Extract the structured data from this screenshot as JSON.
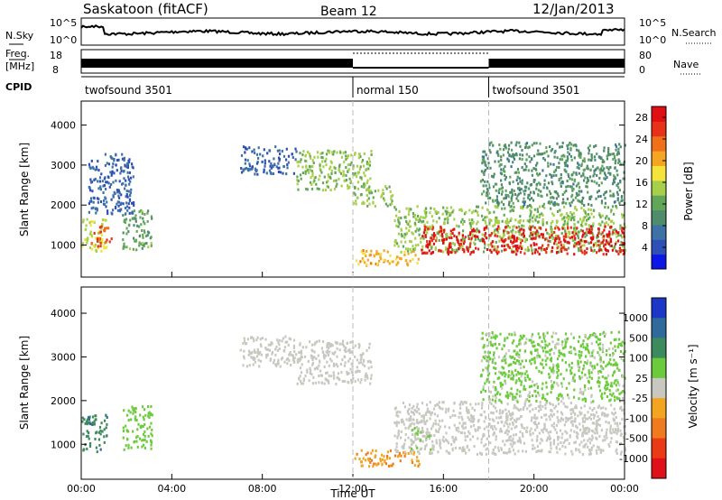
{
  "header": {
    "station": "Saskatoon (fitACF)",
    "beam": "Beam 12",
    "date": "12/Jan/2013"
  },
  "noise_panel": {
    "left_label": "N.Sky",
    "right_label": "N.Search",
    "left_ticks": [
      "10^5",
      "10^0"
    ],
    "right_ticks": [
      "10^5",
      "10^0"
    ]
  },
  "freq_panel": {
    "left_label_1": "Freq.",
    "left_label_2": "[MHz]",
    "left_ticks": [
      "18",
      "8"
    ],
    "right_label": "Nave",
    "right_ticks": [
      "80",
      "0"
    ]
  },
  "cpid_panel": {
    "label": "CPID",
    "segments": [
      {
        "start_hour": 0,
        "end_hour": 12,
        "name": "twofsound 3501"
      },
      {
        "start_hour": 12,
        "end_hour": 18,
        "name": "normal 150"
      },
      {
        "start_hour": 18,
        "end_hour": 24,
        "name": "twofsound 3501"
      }
    ]
  },
  "time_axis": {
    "label": "Time UT",
    "ticks": [
      "00:00",
      "04:00",
      "08:00",
      "12:00",
      "16:00",
      "20:00",
      "00:00"
    ],
    "hours": [
      0,
      4,
      8,
      12,
      16,
      20,
      24
    ]
  },
  "range_axis": {
    "label": "Slant Range [km]",
    "ticks": [
      "1000",
      "2000",
      "3000",
      "4000"
    ],
    "values": [
      1000,
      2000,
      3000,
      4000
    ],
    "ylim": [
      200,
      4600
    ]
  },
  "power_scale": {
    "title": "Power [dB]",
    "tick_labels": [
      "4",
      "8",
      "12",
      "16",
      "20",
      "24",
      "28"
    ],
    "colors": [
      "#0a17e6",
      "#2d4fb6",
      "#3e72a6",
      "#4f8c6c",
      "#62a65a",
      "#a6d04a",
      "#f3e33a",
      "#f4a622",
      "#ef6f1a",
      "#e73118",
      "#df0f14"
    ]
  },
  "velocity_scale": {
    "title": "Velocity [m s⁻¹]",
    "tick_labels": [
      "1000",
      "500",
      "100",
      "25",
      "-25",
      "-100",
      "-500",
      "-1000"
    ],
    "colors": [
      "#1c37c8",
      "#2f6a9a",
      "#3c8a5e",
      "#6ccb3c",
      "#c8c8c0",
      "#f3a522",
      "#f07a1e",
      "#ea3a16",
      "#e0101a"
    ]
  },
  "chart_data": [
    {
      "type": "heatmap",
      "title": "Power [dB]",
      "xlabel": "Time UT",
      "ylabel": "Slant Range [km]",
      "xlim": [
        0,
        24
      ],
      "ylim": [
        200,
        4600
      ],
      "zlim": [
        0,
        30
      ],
      "regions": [
        {
          "t0": 0.0,
          "t1": 1.1,
          "r0": 850,
          "r1": 1700,
          "z": 16
        },
        {
          "t0": 0.4,
          "t1": 1.3,
          "r0": 1000,
          "r1": 1500,
          "z": 25
        },
        {
          "t0": 1.8,
          "t1": 3.1,
          "r0": 900,
          "r1": 1900,
          "z": 12
        },
        {
          "t0": 0.3,
          "t1": 2.3,
          "r0": 1800,
          "r1": 3300,
          "z": 6
        },
        {
          "t0": 7.0,
          "t1": 9.5,
          "r0": 2800,
          "r1": 3500,
          "z": 6
        },
        {
          "t0": 9.5,
          "t1": 12.8,
          "r0": 2400,
          "r1": 3400,
          "z": 14
        },
        {
          "t0": 12.0,
          "t1": 13.8,
          "r0": 2000,
          "r1": 2500,
          "z": 14
        },
        {
          "t0": 12.0,
          "t1": 14.9,
          "r0": 520,
          "r1": 900,
          "z": 20
        },
        {
          "t0": 13.8,
          "t1": 24.0,
          "r0": 850,
          "r1": 2000,
          "z": 14
        },
        {
          "t0": 15.0,
          "t1": 24.0,
          "r0": 800,
          "r1": 1500,
          "z": 28
        },
        {
          "t0": 17.6,
          "t1": 24.0,
          "r0": 2000,
          "r1": 3600,
          "z": 10
        }
      ]
    },
    {
      "type": "heatmap",
      "title": "Velocity [m s⁻¹]",
      "xlabel": "Time UT",
      "ylabel": "Slant Range [km]",
      "xlim": [
        0,
        24
      ],
      "ylim": [
        200,
        4600
      ],
      "zlim": [
        -1000,
        1000
      ],
      "regions": [
        {
          "t0": 0.0,
          "t1": 1.1,
          "r0": 850,
          "r1": 1700,
          "z": 500
        },
        {
          "t0": 1.8,
          "t1": 3.1,
          "r0": 900,
          "r1": 1900,
          "z": 250
        },
        {
          "t0": 7.0,
          "t1": 9.5,
          "r0": 2800,
          "r1": 3500,
          "z": 0
        },
        {
          "t0": 9.5,
          "t1": 12.8,
          "r0": 2400,
          "r1": 3400,
          "z": 0
        },
        {
          "t0": 12.0,
          "t1": 14.9,
          "r0": 520,
          "r1": 900,
          "z": -300
        },
        {
          "t0": 13.8,
          "t1": 24.0,
          "r0": 800,
          "r1": 2000,
          "z": 0
        },
        {
          "t0": 14.5,
          "t1": 15.5,
          "r0": 900,
          "r1": 1400,
          "z": 80
        },
        {
          "t0": 17.6,
          "t1": 24.0,
          "r0": 2000,
          "r1": 3600,
          "z": 150
        }
      ]
    }
  ]
}
